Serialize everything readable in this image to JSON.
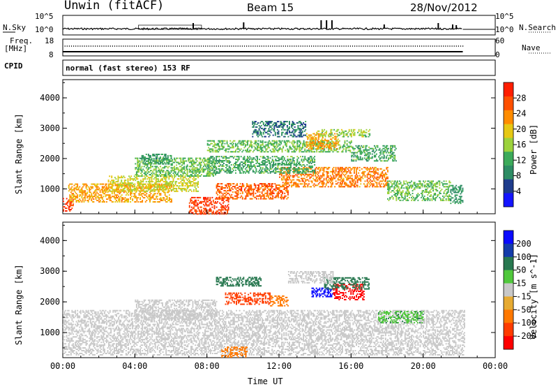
{
  "header": {
    "station": "Unwin (fitACF)",
    "beam": "Beam 15",
    "date": "28/Nov/2012"
  },
  "noise_panel": {
    "left_label": "N.Sky",
    "right_label": "N.Search",
    "ticks_left": [
      "10^5",
      "10^0"
    ],
    "ticks_right": [
      "10^5",
      "10^0"
    ]
  },
  "freq_panel": {
    "left_label_top": "Freq.",
    "left_label_bottom": "[MHz]",
    "right_label": "Nave",
    "ticks_left": [
      "18",
      "8"
    ],
    "ticks_right": [
      "60",
      "0"
    ]
  },
  "cpid_panel": {
    "label": "CPID",
    "text": "normal (fast stereo) 153 RF"
  },
  "colors": {
    "power_scale": [
      "#1414ff",
      "#1e3c8c",
      "#2d8c64",
      "#3caa5a",
      "#9cd23c",
      "#e6c814",
      "#ff8c00",
      "#ff5000",
      "#ff1e00"
    ],
    "velocity_scale": [
      "#0a0aff",
      "#143caa",
      "#287850",
      "#50c83c",
      "#c8c8c8",
      "#e6aa32",
      "#ff7800",
      "#ff3c00",
      "#ff0000"
    ]
  },
  "chart_data": [
    {
      "type": "heatmap",
      "name": "power",
      "ylabel": "Slant Range [km]",
      "ytick_labels": [
        "1000",
        "2000",
        "3000",
        "4000"
      ],
      "colorbar_label": "Power [dB]",
      "colorbar_ticks": [
        "4",
        "8",
        "12",
        "16",
        "20",
        "24",
        "28"
      ],
      "colorbar_values": [
        4,
        8,
        12,
        16,
        20,
        24,
        28
      ],
      "ylim": [
        180,
        4600
      ],
      "clim": [
        0,
        32
      ],
      "xlim_hours": [
        0,
        24
      ],
      "blobs": [
        {
          "t0": 0.0,
          "t1": 0.6,
          "r0": 250,
          "r1": 700,
          "v": 28
        },
        {
          "t0": 0.3,
          "t1": 6.0,
          "r0": 550,
          "r1": 1150,
          "v": 22
        },
        {
          "t0": 2.5,
          "t1": 7.5,
          "r0": 900,
          "r1": 1400,
          "v": 18
        },
        {
          "t0": 4.0,
          "t1": 8.5,
          "r0": 1400,
          "r1": 2000,
          "v": 14
        },
        {
          "t0": 4.3,
          "t1": 6.0,
          "r0": 1800,
          "r1": 2150,
          "v": 10
        },
        {
          "t0": 7.0,
          "t1": 9.2,
          "r0": 150,
          "r1": 700,
          "v": 28
        },
        {
          "t0": 8.5,
          "t1": 12.5,
          "r0": 650,
          "r1": 1150,
          "v": 26
        },
        {
          "t0": 12.0,
          "t1": 18.0,
          "r0": 1050,
          "r1": 1700,
          "v": 24
        },
        {
          "t0": 8.0,
          "t1": 16.0,
          "r0": 2200,
          "r1": 2600,
          "v": 14
        },
        {
          "t0": 13.5,
          "t1": 15.3,
          "r0": 2300,
          "r1": 2800,
          "v": 22
        },
        {
          "t0": 14.0,
          "t1": 17.0,
          "r0": 2700,
          "r1": 2950,
          "v": 16
        },
        {
          "t0": 18.0,
          "t1": 21.5,
          "r0": 600,
          "r1": 1250,
          "v": 14
        },
        {
          "t0": 8.0,
          "t1": 14.0,
          "r0": 1500,
          "r1": 2050,
          "v": 12
        },
        {
          "t0": 10.5,
          "t1": 13.5,
          "r0": 2700,
          "r1": 3200,
          "v": 8
        },
        {
          "t0": 16.0,
          "t1": 18.5,
          "r0": 1900,
          "r1": 2400,
          "v": 12
        },
        {
          "t0": 21.5,
          "t1": 22.2,
          "r0": 500,
          "r1": 1100,
          "v": 10
        }
      ]
    },
    {
      "type": "heatmap",
      "name": "velocity",
      "ylabel": "Slant Range [km]",
      "ytick_labels": [
        "1000",
        "2000",
        "3000",
        "4000"
      ],
      "colorbar_label": "Velocity [m s^-1]",
      "colorbar_ticks": [
        "200",
        "100",
        "50",
        "15",
        "-15",
        "-50",
        "-100",
        "-200"
      ],
      "colorbar_values": [
        200,
        100,
        50,
        15,
        -15,
        -50,
        -100,
        -200
      ],
      "ylim": [
        180,
        4600
      ],
      "xlim_hours": [
        0,
        24
      ],
      "blobs": [
        {
          "t0": 0.0,
          "t1": 22.3,
          "r0": 250,
          "r1": 1700,
          "v": 0
        },
        {
          "t0": 4.0,
          "t1": 8.5,
          "r0": 1400,
          "r1": 2050,
          "v": 0
        },
        {
          "t0": 9.0,
          "t1": 11.5,
          "r0": 1900,
          "r1": 2300,
          "v": -80
        },
        {
          "t0": 11.5,
          "t1": 12.5,
          "r0": 1850,
          "r1": 2200,
          "v": -40
        },
        {
          "t0": 13.8,
          "t1": 15.0,
          "r0": 2150,
          "r1": 2450,
          "v": 200
        },
        {
          "t0": 15.0,
          "t1": 16.7,
          "r0": 2050,
          "r1": 2550,
          "v": -230
        },
        {
          "t0": 14.5,
          "t1": 17.0,
          "r0": 2400,
          "r1": 2800,
          "v": 50
        },
        {
          "t0": 12.5,
          "t1": 15.0,
          "r0": 2600,
          "r1": 3000,
          "v": 0
        },
        {
          "t0": 8.5,
          "t1": 11.0,
          "r0": 2500,
          "r1": 2800,
          "v": 40
        },
        {
          "t0": 8.8,
          "t1": 10.2,
          "r0": 180,
          "r1": 500,
          "v": -40
        },
        {
          "t0": 17.5,
          "t1": 20.0,
          "r0": 1300,
          "r1": 1700,
          "v": 30
        }
      ]
    }
  ],
  "x_axis": {
    "label": "Time UT",
    "ticks": [
      "00:00",
      "04:00",
      "08:00",
      "12:00",
      "16:00",
      "20:00",
      "00:00"
    ]
  }
}
